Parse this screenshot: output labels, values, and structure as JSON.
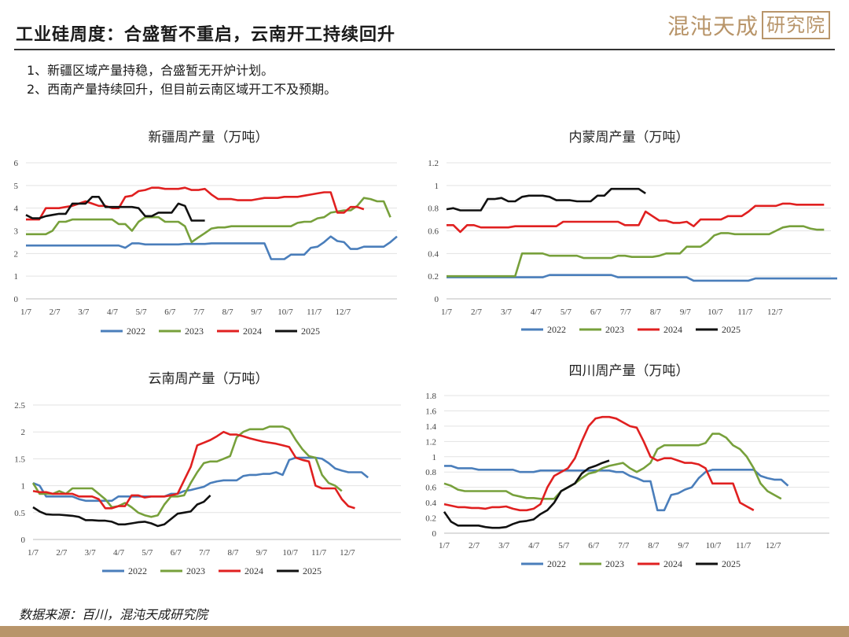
{
  "header": {
    "title": "工业硅周度：合盛暂不重启，云南开工持续回升",
    "logo_text": "混沌天成",
    "logo_box_text": "研究院"
  },
  "bullets": [
    "1、新疆区域产量持稳，合盛暂无开炉计划。",
    "2、西南产量持续回升，但目前云南区域开工不及预期。"
  ],
  "footer": {
    "source": "数据来源：百川，混沌天成研究院"
  },
  "colors": {
    "s2022": "#4a7ebb",
    "s2023": "#77a03b",
    "s2024": "#e02020",
    "s2025": "#111111",
    "accent": "#b8956a"
  },
  "chart_data": [
    {
      "type": "line",
      "title": "新疆周产量（万吨）",
      "x_ticks": [
        "1/7",
        "2/7",
        "3/7",
        "4/7",
        "5/7",
        "6/7",
        "7/7",
        "8/7",
        "9/7",
        "10/7",
        "11/7",
        "12/7"
      ],
      "ylim": [
        0,
        6
      ],
      "y_ticks": [
        "0",
        "1",
        "2",
        "3",
        "4",
        "5",
        "6"
      ],
      "legend": "bottom",
      "series": [
        {
          "name": "2022",
          "color": "#4a7ebb",
          "values": [
            2.35,
            2.35,
            2.35,
            2.35,
            2.35,
            2.35,
            2.35,
            2.35,
            2.35,
            2.35,
            2.35,
            2.35,
            2.35,
            2.35,
            2.35,
            2.25,
            2.45,
            2.45,
            2.4,
            2.4,
            2.4,
            2.4,
            2.4,
            2.4,
            2.42,
            2.42,
            2.42,
            2.42,
            2.45,
            2.45,
            2.45,
            2.45,
            2.45,
            2.45,
            2.45,
            2.45,
            2.45,
            1.75,
            1.75,
            1.75,
            1.95,
            1.95,
            1.95,
            2.25,
            2.3,
            2.5,
            2.75,
            2.55,
            2.5,
            2.2,
            2.2,
            2.3,
            2.3,
            2.3,
            2.3,
            2.5,
            2.75
          ]
        },
        {
          "name": "2023",
          "color": "#77a03b",
          "values": [
            2.85,
            2.85,
            2.85,
            2.85,
            3.0,
            3.4,
            3.4,
            3.5,
            3.5,
            3.5,
            3.5,
            3.5,
            3.5,
            3.5,
            3.3,
            3.3,
            3.0,
            3.4,
            3.6,
            3.6,
            3.6,
            3.4,
            3.4,
            3.4,
            3.2,
            2.5,
            2.7,
            2.9,
            3.1,
            3.15,
            3.15,
            3.2,
            3.2,
            3.2,
            3.2,
            3.2,
            3.2,
            3.2,
            3.2,
            3.2,
            3.2,
            3.35,
            3.4,
            3.4,
            3.55,
            3.6,
            3.8,
            3.85,
            3.9,
            3.9,
            4.1,
            4.45,
            4.4,
            4.3,
            4.3,
            3.6
          ]
        },
        {
          "name": "2024",
          "color": "#e02020",
          "values": [
            3.5,
            3.5,
            3.5,
            4.0,
            4.0,
            4.0,
            4.05,
            4.1,
            4.2,
            4.3,
            4.2,
            4.1,
            4.1,
            4.0,
            4.0,
            4.5,
            4.55,
            4.75,
            4.8,
            4.9,
            4.9,
            4.85,
            4.85,
            4.85,
            4.9,
            4.8,
            4.8,
            4.85,
            4.6,
            4.4,
            4.4,
            4.4,
            4.35,
            4.35,
            4.35,
            4.4,
            4.45,
            4.45,
            4.45,
            4.5,
            4.5,
            4.5,
            4.55,
            4.6,
            4.65,
            4.7,
            4.7,
            3.8,
            3.8,
            4.05,
            4.05,
            3.95
          ]
        },
        {
          "name": "2025",
          "color": "#111111",
          "values": [
            3.7,
            3.55,
            3.55,
            3.65,
            3.7,
            3.75,
            3.75,
            4.2,
            4.2,
            4.2,
            4.5,
            4.5,
            4.05,
            4.05,
            4.05,
            4.05,
            4.05,
            4.0,
            3.65,
            3.65,
            3.8,
            3.8,
            3.8,
            4.2,
            4.1,
            3.45,
            3.45,
            3.45
          ]
        }
      ]
    },
    {
      "type": "line",
      "title": "内蒙周产量（万吨）",
      "x_ticks": [
        "1/7",
        "2/7",
        "3/7",
        "4/7",
        "5/7",
        "6/7",
        "7/7",
        "8/7",
        "9/7",
        "10/7",
        "11/7",
        "12/7"
      ],
      "ylim": [
        0,
        1.2
      ],
      "y_ticks": [
        "0",
        "0.2",
        "0.4",
        "0.6",
        "0.8",
        "1",
        "1.2"
      ],
      "legend": "bottom",
      "series": [
        {
          "name": "2022",
          "color": "#4a7ebb",
          "values": [
            0.19,
            0.19,
            0.19,
            0.19,
            0.19,
            0.19,
            0.19,
            0.19,
            0.19,
            0.19,
            0.19,
            0.19,
            0.19,
            0.19,
            0.19,
            0.21,
            0.21,
            0.21,
            0.21,
            0.21,
            0.21,
            0.21,
            0.21,
            0.21,
            0.21,
            0.19,
            0.19,
            0.19,
            0.19,
            0.19,
            0.19,
            0.19,
            0.19,
            0.19,
            0.19,
            0.19,
            0.16,
            0.16,
            0.16,
            0.16,
            0.16,
            0.16,
            0.16,
            0.16,
            0.16,
            0.18,
            0.18,
            0.18,
            0.18,
            0.18,
            0.18,
            0.18,
            0.18,
            0.18,
            0.18,
            0.18,
            0.18,
            0.18,
            0.2
          ]
        },
        {
          "name": "2023",
          "color": "#77a03b",
          "values": [
            0.2,
            0.2,
            0.2,
            0.2,
            0.2,
            0.2,
            0.2,
            0.2,
            0.2,
            0.2,
            0.2,
            0.4,
            0.4,
            0.4,
            0.4,
            0.38,
            0.38,
            0.38,
            0.38,
            0.38,
            0.36,
            0.36,
            0.36,
            0.36,
            0.36,
            0.38,
            0.38,
            0.37,
            0.37,
            0.37,
            0.37,
            0.38,
            0.4,
            0.4,
            0.4,
            0.46,
            0.46,
            0.46,
            0.5,
            0.56,
            0.58,
            0.58,
            0.57,
            0.57,
            0.57,
            0.57,
            0.57,
            0.57,
            0.6,
            0.63,
            0.64,
            0.64,
            0.64,
            0.62,
            0.61,
            0.61
          ]
        },
        {
          "name": "2024",
          "color": "#e02020",
          "values": [
            0.65,
            0.65,
            0.59,
            0.65,
            0.65,
            0.63,
            0.63,
            0.63,
            0.63,
            0.63,
            0.64,
            0.64,
            0.64,
            0.64,
            0.64,
            0.64,
            0.64,
            0.68,
            0.68,
            0.68,
            0.68,
            0.68,
            0.68,
            0.68,
            0.68,
            0.68,
            0.65,
            0.65,
            0.65,
            0.77,
            0.73,
            0.69,
            0.69,
            0.67,
            0.67,
            0.68,
            0.64,
            0.7,
            0.7,
            0.7,
            0.7,
            0.73,
            0.73,
            0.73,
            0.77,
            0.82,
            0.82,
            0.82,
            0.82,
            0.84,
            0.84,
            0.83,
            0.83,
            0.83,
            0.83,
            0.83
          ]
        },
        {
          "name": "2025",
          "color": "#111111",
          "values": [
            0.79,
            0.8,
            0.78,
            0.78,
            0.78,
            0.78,
            0.88,
            0.88,
            0.89,
            0.86,
            0.86,
            0.9,
            0.91,
            0.91,
            0.91,
            0.9,
            0.87,
            0.87,
            0.87,
            0.86,
            0.86,
            0.86,
            0.91,
            0.91,
            0.97,
            0.97,
            0.97,
            0.97,
            0.97,
            0.93
          ]
        }
      ]
    },
    {
      "type": "line",
      "title": "云南周产量（万吨）",
      "x_ticks": [
        "1/7",
        "2/7",
        "3/7",
        "4/7",
        "5/7",
        "6/7",
        "7/7",
        "8/7",
        "9/7",
        "10/7",
        "11/7",
        "12/7"
      ],
      "ylim": [
        0,
        2.5
      ],
      "y_ticks": [
        "0",
        "0.5",
        "1",
        "1.5",
        "2",
        "2.5"
      ],
      "legend": "bottom",
      "series": [
        {
          "name": "2022",
          "color": "#4a7ebb",
          "values": [
            1.05,
            1.0,
            0.8,
            0.8,
            0.8,
            0.8,
            0.8,
            0.75,
            0.72,
            0.72,
            0.72,
            0.72,
            0.72,
            0.8,
            0.8,
            0.8,
            0.8,
            0.8,
            0.8,
            0.8,
            0.8,
            0.85,
            0.85,
            0.9,
            0.92,
            0.95,
            0.98,
            1.05,
            1.08,
            1.1,
            1.1,
            1.1,
            1.18,
            1.2,
            1.2,
            1.22,
            1.22,
            1.25,
            1.2,
            1.48,
            1.52,
            1.52,
            1.52,
            1.52,
            1.5,
            1.42,
            1.32,
            1.28,
            1.25,
            1.25,
            1.25,
            1.15
          ]
        },
        {
          "name": "2023",
          "color": "#77a03b",
          "values": [
            1.05,
            0.85,
            0.85,
            0.85,
            0.9,
            0.85,
            0.95,
            0.95,
            0.95,
            0.95,
            0.85,
            0.75,
            0.6,
            0.62,
            0.68,
            0.6,
            0.5,
            0.45,
            0.42,
            0.45,
            0.65,
            0.8,
            0.8,
            0.82,
            1.05,
            1.25,
            1.42,
            1.45,
            1.45,
            1.5,
            1.55,
            1.9,
            2.0,
            2.05,
            2.05,
            2.05,
            2.1,
            2.1,
            2.1,
            2.05,
            1.85,
            1.68,
            1.55,
            1.52,
            1.2,
            1.05,
            1.0,
            0.9
          ]
        },
        {
          "name": "2024",
          "color": "#e02020",
          "values": [
            0.9,
            0.88,
            0.88,
            0.85,
            0.85,
            0.85,
            0.85,
            0.8,
            0.8,
            0.8,
            0.75,
            0.58,
            0.58,
            0.62,
            0.62,
            0.82,
            0.82,
            0.78,
            0.8,
            0.8,
            0.8,
            0.82,
            0.85,
            1.1,
            1.35,
            1.75,
            1.8,
            1.85,
            1.92,
            2.0,
            1.95,
            1.95,
            1.92,
            1.88,
            1.85,
            1.82,
            1.8,
            1.78,
            1.75,
            1.72,
            1.52,
            1.48,
            1.45,
            1.0,
            0.95,
            0.95,
            0.95,
            0.75,
            0.62,
            0.58
          ]
        },
        {
          "name": "2025",
          "color": "#111111",
          "values": [
            0.6,
            0.52,
            0.47,
            0.46,
            0.46,
            0.45,
            0.44,
            0.42,
            0.36,
            0.36,
            0.35,
            0.35,
            0.33,
            0.28,
            0.28,
            0.3,
            0.32,
            0.33,
            0.3,
            0.25,
            0.28,
            0.38,
            0.48,
            0.5,
            0.52,
            0.65,
            0.7,
            0.82
          ]
        }
      ]
    },
    {
      "type": "line",
      "title": "四川周产量（万吨）",
      "x_ticks": [
        "1/7",
        "2/7",
        "3/7",
        "4/7",
        "5/7",
        "6/7",
        "7/7",
        "8/7",
        "9/7",
        "10/7",
        "11/7",
        "12/7"
      ],
      "ylim": [
        0,
        1.8
      ],
      "y_ticks": [
        "0",
        "0.2",
        "0.4",
        "0.6",
        "0.8",
        "1",
        "1.2",
        "1.4",
        "1.6",
        "1.8"
      ],
      "legend": "bottom",
      "series": [
        {
          "name": "2022",
          "color": "#4a7ebb",
          "values": [
            0.88,
            0.88,
            0.85,
            0.85,
            0.85,
            0.83,
            0.83,
            0.83,
            0.83,
            0.83,
            0.83,
            0.8,
            0.8,
            0.8,
            0.82,
            0.82,
            0.82,
            0.82,
            0.82,
            0.82,
            0.82,
            0.82,
            0.82,
            0.82,
            0.82,
            0.8,
            0.8,
            0.75,
            0.72,
            0.68,
            0.68,
            0.3,
            0.3,
            0.5,
            0.52,
            0.57,
            0.6,
            0.72,
            0.8,
            0.83,
            0.83,
            0.83,
            0.83,
            0.83,
            0.83,
            0.83,
            0.75,
            0.72,
            0.7,
            0.7,
            0.62
          ]
        },
        {
          "name": "2023",
          "color": "#77a03b",
          "values": [
            0.65,
            0.62,
            0.57,
            0.55,
            0.55,
            0.55,
            0.55,
            0.55,
            0.55,
            0.55,
            0.5,
            0.48,
            0.46,
            0.46,
            0.45,
            0.45,
            0.45,
            0.55,
            0.6,
            0.65,
            0.72,
            0.78,
            0.8,
            0.85,
            0.88,
            0.9,
            0.92,
            0.85,
            0.8,
            0.85,
            0.92,
            1.1,
            1.15,
            1.15,
            1.15,
            1.15,
            1.15,
            1.15,
            1.18,
            1.3,
            1.3,
            1.25,
            1.15,
            1.1,
            1.0,
            0.85,
            0.65,
            0.55,
            0.5,
            0.45
          ]
        },
        {
          "name": "2024",
          "color": "#e02020",
          "values": [
            0.38,
            0.36,
            0.34,
            0.34,
            0.33,
            0.33,
            0.32,
            0.34,
            0.34,
            0.35,
            0.32,
            0.3,
            0.3,
            0.32,
            0.38,
            0.6,
            0.75,
            0.8,
            0.85,
            0.98,
            1.2,
            1.4,
            1.5,
            1.52,
            1.52,
            1.5,
            1.45,
            1.4,
            1.38,
            1.2,
            1.0,
            0.95,
            0.98,
            0.98,
            0.95,
            0.92,
            0.92,
            0.9,
            0.85,
            0.65,
            0.65,
            0.65,
            0.65,
            0.4,
            0.35,
            0.3
          ]
        },
        {
          "name": "2025",
          "color": "#111111",
          "values": [
            0.28,
            0.15,
            0.1,
            0.1,
            0.1,
            0.1,
            0.08,
            0.07,
            0.07,
            0.08,
            0.12,
            0.15,
            0.16,
            0.18,
            0.25,
            0.3,
            0.4,
            0.55,
            0.6,
            0.65,
            0.78,
            0.85,
            0.88,
            0.92,
            0.95
          ]
        }
      ]
    }
  ]
}
